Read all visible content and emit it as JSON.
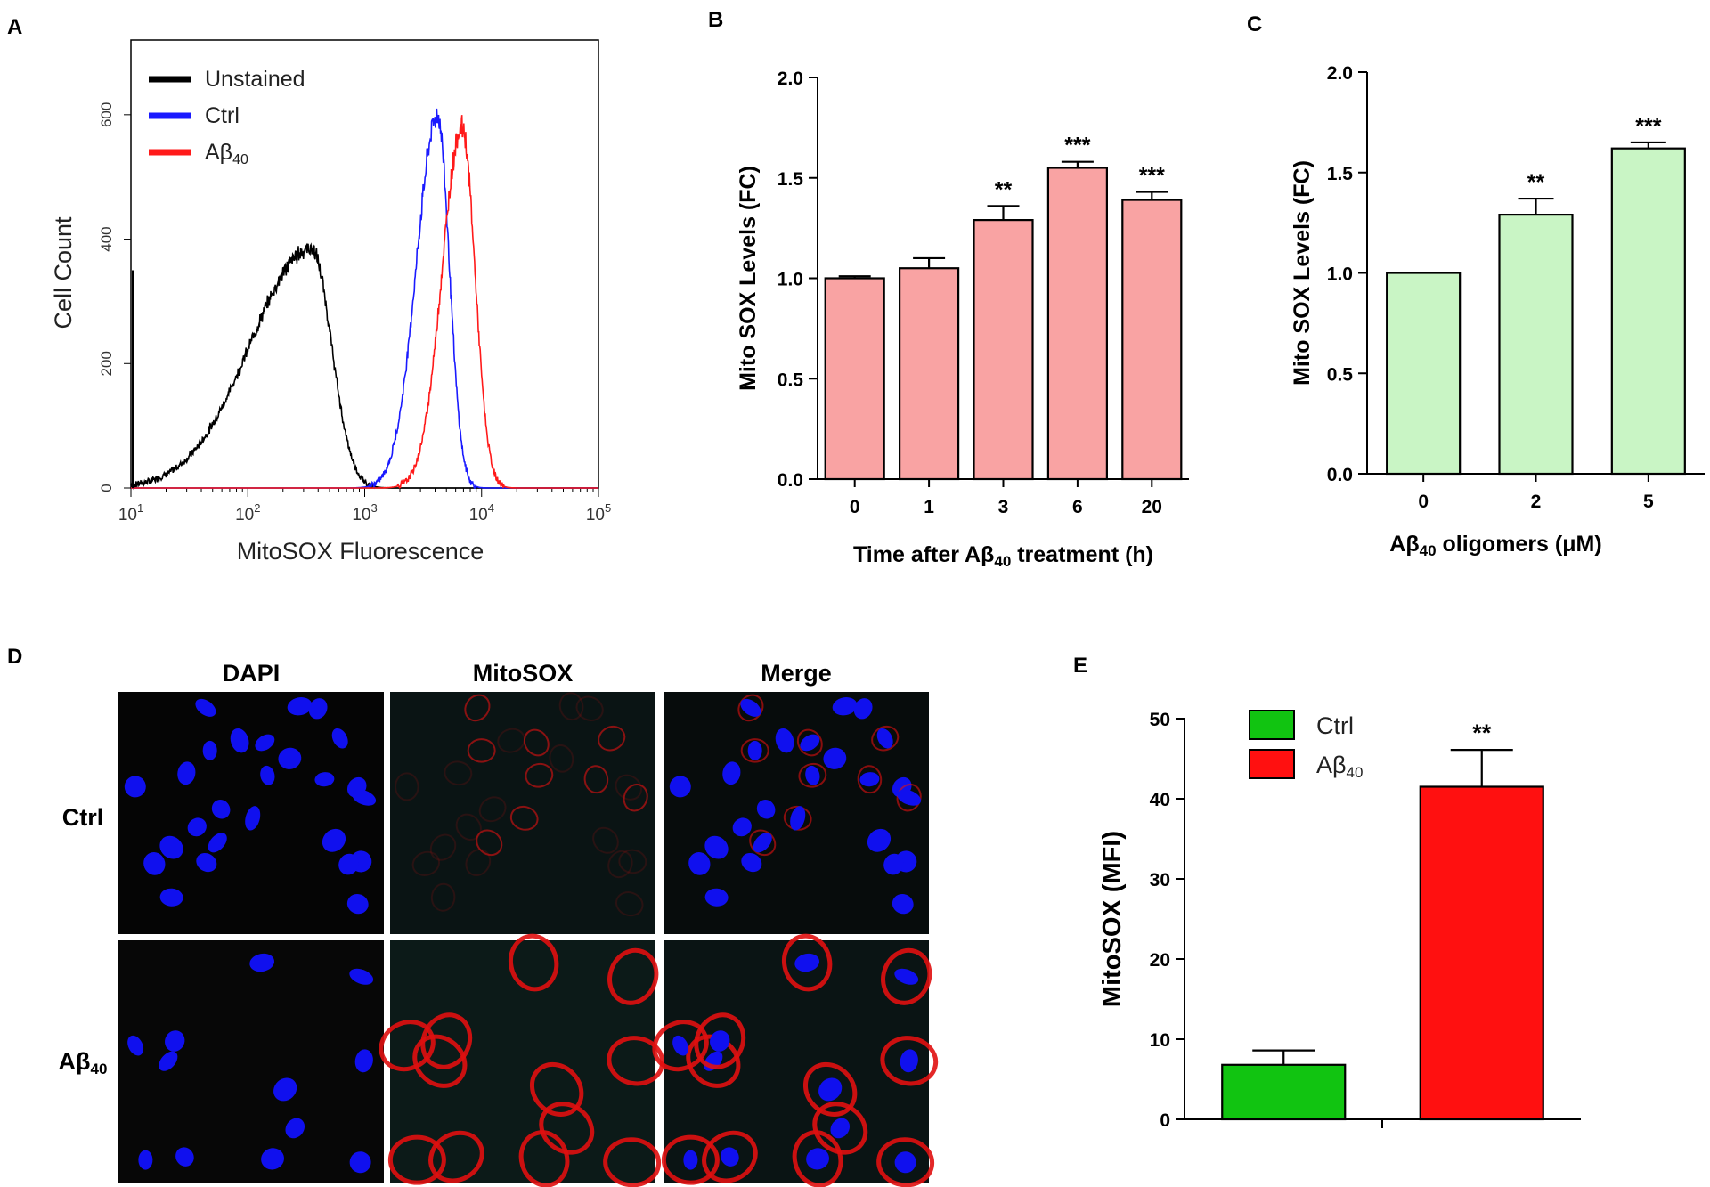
{
  "panels": {
    "A": "A",
    "B": "B",
    "C": "C",
    "D": "D",
    "E": "E"
  },
  "colors": {
    "unstained": "#000000",
    "ctrl": "#1a1aff",
    "abeta": "#ff1a1a",
    "bar_b": "#f9a3a3",
    "bar_c": "#c9f5c5",
    "bar_e_ctrl": "#11c411",
    "bar_e_abeta": "#ff1010",
    "dapi": "#1010ee",
    "mito": "#e01010"
  },
  "chart_data": [
    {
      "panel": "A",
      "type": "line",
      "title": "",
      "xlabel": "MitoSOX Fluorescence",
      "ylabel": "Cell Count",
      "xscale": "log",
      "xlim": [
        10,
        100000
      ],
      "ylim": [
        0,
        720
      ],
      "x_tick_labels": [
        {
          "base": "10",
          "exp": "1"
        },
        {
          "base": "10",
          "exp": "2"
        },
        {
          "base": "10",
          "exp": "3"
        },
        {
          "base": "10",
          "exp": "4"
        },
        {
          "base": "10",
          "exp": "5"
        }
      ],
      "y_tick_labels": [
        "0",
        "200",
        "400",
        "600"
      ],
      "y_tick_values": [
        0,
        200,
        400,
        600
      ],
      "legend": {
        "position": "top-left",
        "entries": [
          {
            "label": "Unstained",
            "sub": ""
          },
          {
            "label": "Ctrl",
            "sub": ""
          },
          {
            "label": "Aβ",
            "sub": "40"
          }
        ]
      },
      "series": [
        {
          "name": "Unstained",
          "peak_x": 350,
          "peak_y": 385,
          "log_sigma_left": 0.52,
          "log_sigma_right": 0.17
        },
        {
          "name": "Ctrl",
          "peak_x": 4200,
          "peak_y": 598,
          "log_sigma_left": 0.18,
          "log_sigma_right": 0.1
        },
        {
          "name": "Aβ40",
          "peak_x": 6800,
          "peak_y": 580,
          "log_sigma_left": 0.17,
          "log_sigma_right": 0.11
        }
      ]
    },
    {
      "panel": "B",
      "type": "bar",
      "title": "",
      "xlabel": {
        "pre": "Time after Aβ",
        "sub": "40",
        "post": " treatment (h)"
      },
      "ylabel": "Mito SOX Levels (FC)",
      "categories": [
        "0",
        "1",
        "3",
        "6",
        "20"
      ],
      "values": [
        1.0,
        1.05,
        1.29,
        1.55,
        1.39
      ],
      "errors": [
        0.01,
        0.05,
        0.07,
        0.03,
        0.04
      ],
      "significance": [
        "",
        "",
        "**",
        "***",
        "***"
      ],
      "ylim": [
        0,
        2.0
      ],
      "y_tick_labels": [
        "0.0",
        "0.5",
        "1.0",
        "1.5",
        "2.0"
      ],
      "y_tick_values": [
        0,
        0.5,
        1.0,
        1.5,
        2.0
      ]
    },
    {
      "panel": "C",
      "type": "bar",
      "title": "",
      "xlabel": {
        "pre": "Aβ",
        "sub": "40",
        "post": " oligomers (μM)"
      },
      "ylabel": "Mito SOX Levels (FC)",
      "categories": [
        "0",
        "2",
        "5"
      ],
      "values": [
        1.0,
        1.29,
        1.62
      ],
      "errors": [
        0.0,
        0.08,
        0.03
      ],
      "significance": [
        "",
        "**",
        "***"
      ],
      "ylim": [
        0,
        2.0
      ],
      "y_tick_labels": [
        "0.0",
        "0.5",
        "1.0",
        "1.5",
        "2.0"
      ],
      "y_tick_values": [
        0,
        0.5,
        1.0,
        1.5,
        2.0
      ]
    },
    {
      "panel": "E",
      "type": "bar",
      "title": "",
      "xlabel": "",
      "ylabel": "MitoSOX (MFI)",
      "categories": [
        "Ctrl",
        "Aβ40"
      ],
      "values": [
        6.8,
        41.5
      ],
      "errors": [
        1.8,
        4.6
      ],
      "significance": [
        "",
        "**"
      ],
      "ylim": [
        0,
        50
      ],
      "y_tick_labels": [
        "0",
        "10",
        "20",
        "30",
        "40",
        "50"
      ],
      "y_tick_values": [
        0,
        10,
        20,
        30,
        40,
        50
      ],
      "legend": {
        "position": "top-left",
        "entries": [
          {
            "label": "Ctrl",
            "sub": ""
          },
          {
            "label": "Aβ",
            "sub": "40"
          }
        ]
      }
    }
  ],
  "microscopy": {
    "panel": "D",
    "columns": [
      "DAPI",
      "MitoSOX",
      "Merge"
    ],
    "rows": [
      {
        "label": "Ctrl",
        "sub": ""
      },
      {
        "label": "Aβ",
        "sub": "40"
      }
    ]
  }
}
